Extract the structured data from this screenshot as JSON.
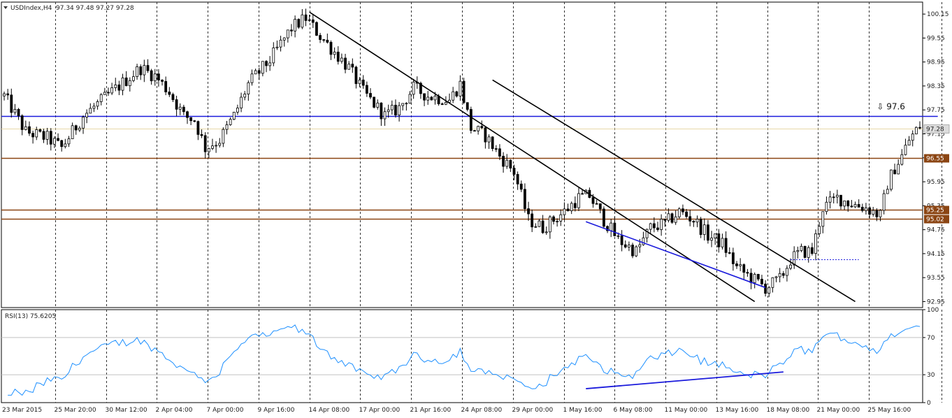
{
  "window": {
    "symbol_header": "USDIndex,H4",
    "ohlc_header": "97.34 97.48 97.27 97.28"
  },
  "chart_data": [
    {
      "type": "candlestick",
      "symbol": "USDIndex",
      "timeframe": "H4",
      "ylim": [
        92.8,
        100.45
      ],
      "price_ticks": [
        "100.15",
        "99.55",
        "98.95",
        "98.35",
        "97.75",
        "97.15",
        "96.55",
        "95.95",
        "95.35",
        "94.75",
        "94.15",
        "93.55",
        "92.95"
      ],
      "current_price_label": "97.28",
      "current_price": 97.28,
      "x_tick_labels": [
        "23 Mar 2015",
        "25 Mar 20:00",
        "30 Mar 12:00",
        "2 Apr 04:00",
        "7 Apr 00:00",
        "9 Apr 16:00",
        "14 Apr 08:00",
        "17 Apr 00:00",
        "21 Apr 16:00",
        "24 Apr 08:00",
        "29 Apr 00:00",
        "1 May 16:00",
        "6 May 08:00",
        "11 May 00:00",
        "13 May 16:00",
        "18 May 08:00",
        "21 May 00:00",
        "25 May 16:00"
      ],
      "bar_count": 255,
      "price_path": [
        [
          0,
          98.1
        ],
        [
          6,
          97.2
        ],
        [
          12,
          97.05
        ],
        [
          16,
          96.8
        ],
        [
          22,
          97.6
        ],
        [
          30,
          98.2
        ],
        [
          38,
          98.8
        ],
        [
          42,
          98.6
        ],
        [
          46,
          98.2
        ],
        [
          50,
          97.6
        ],
        [
          53,
          97.5
        ],
        [
          56,
          96.8
        ],
        [
          60,
          97.0
        ],
        [
          64,
          97.6
        ],
        [
          68,
          98.4
        ],
        [
          74,
          99.0
        ],
        [
          80,
          99.8
        ],
        [
          84,
          100.05
        ],
        [
          88,
          99.6
        ],
        [
          92,
          99.2
        ],
        [
          96,
          98.8
        ],
        [
          100,
          98.2
        ],
        [
          106,
          97.6
        ],
        [
          110,
          97.8
        ],
        [
          114,
          98.3
        ],
        [
          118,
          98.1
        ],
        [
          124,
          98.0
        ],
        [
          127,
          98.4
        ],
        [
          130,
          97.3
        ],
        [
          134,
          97.1
        ],
        [
          138,
          96.6
        ],
        [
          142,
          96.2
        ],
        [
          146,
          95.0
        ],
        [
          150,
          94.8
        ],
        [
          156,
          95.2
        ],
        [
          160,
          95.55
        ],
        [
          163,
          95.6
        ],
        [
          167,
          95.0
        ],
        [
          171,
          94.5
        ],
        [
          176,
          94.2
        ],
        [
          180,
          94.8
        ],
        [
          184,
          94.9
        ],
        [
          188,
          95.2
        ],
        [
          192,
          95.0
        ],
        [
          196,
          94.6
        ],
        [
          200,
          94.4
        ],
        [
          204,
          93.8
        ],
        [
          208,
          93.55
        ],
        [
          212,
          93.3
        ],
        [
          216,
          93.5
        ],
        [
          219,
          94.0
        ],
        [
          222,
          94.2
        ],
        [
          225,
          94.2
        ],
        [
          228,
          95.3
        ],
        [
          232,
          95.55
        ],
        [
          236,
          95.4
        ],
        [
          240,
          95.3
        ],
        [
          244,
          95.1
        ],
        [
          246,
          95.9
        ],
        [
          248,
          96.3
        ],
        [
          250,
          96.6
        ],
        [
          252,
          97.0
        ],
        [
          255,
          97.35
        ]
      ],
      "horizontal_levels": [
        {
          "value": 97.6,
          "color": "#1a1adc",
          "label": "⇩ 97.6",
          "show_axis_tag": false
        },
        {
          "value": 96.55,
          "color": "#8b4513",
          "label": "96.55",
          "show_axis_tag": true
        },
        {
          "value": 95.25,
          "color": "#8b4513",
          "label": "95.25",
          "show_axis_tag": true
        },
        {
          "value": 95.02,
          "color": "#8b4513",
          "label": "95.02",
          "show_axis_tag": true
        }
      ],
      "trendlines": [
        {
          "from": [
            85,
            100.2
          ],
          "to": [
            209,
            92.95
          ],
          "color": "#000000"
        },
        {
          "from": [
            136,
            98.5
          ],
          "to": [
            237,
            92.95
          ],
          "color": "#000000"
        },
        {
          "from": [
            162,
            94.95
          ],
          "to": [
            212,
            93.3
          ],
          "color": "#1a1adc"
        }
      ]
    },
    {
      "type": "line",
      "indicator": "RSI(13)",
      "indicator_label": "RSI(13) 75.6205",
      "ylim": [
        0,
        100
      ],
      "y_ticks": [
        "100",
        "70",
        "30",
        "0"
      ],
      "levels": [
        70,
        30
      ],
      "current_value": 75.6205,
      "series_color": "#1e90ff",
      "trendline": {
        "from": [
          162,
          15
        ],
        "to": [
          217,
          33
        ],
        "color": "#1a1adc"
      }
    }
  ]
}
